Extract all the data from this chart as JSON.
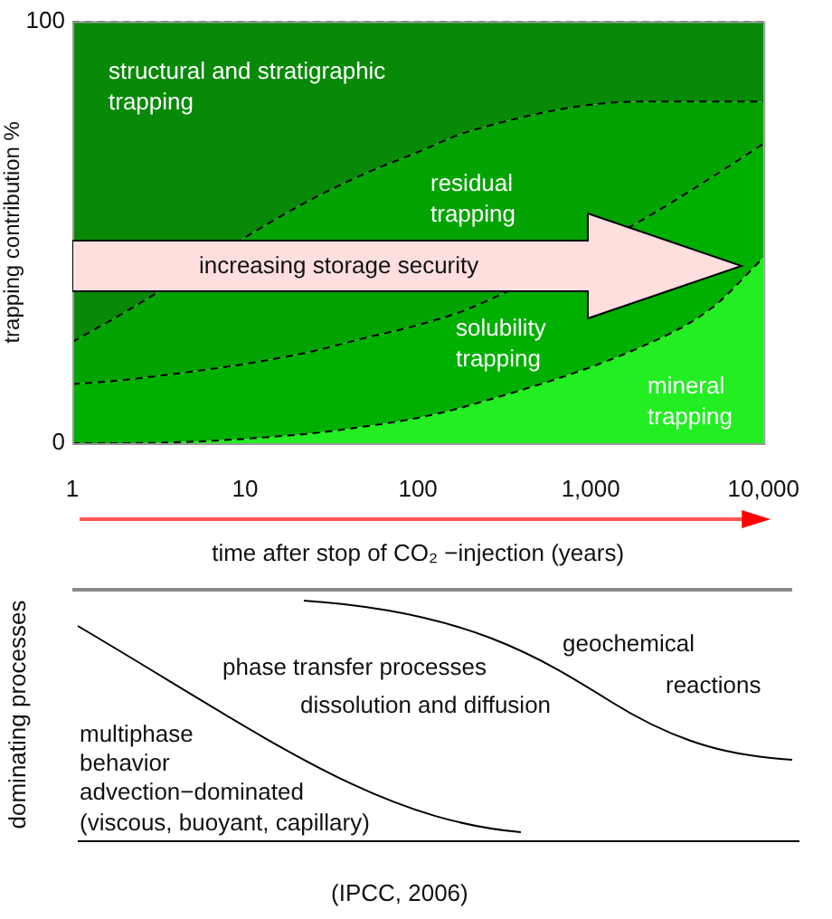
{
  "chart_data": {
    "type": "area",
    "stacked": true,
    "ylabel": "trapping contribution %",
    "xlabel": "time after stop of CO₂ −injection (years)",
    "x": [
      1,
      2,
      20,
      50,
      100,
      200,
      2000,
      5000,
      10000
    ],
    "log": "x",
    "xlim": [
      1,
      10000
    ],
    "xticks": [
      1,
      10,
      100,
      {
        "value": 1000,
        "label": "1,000"
      },
      {
        "value": 10000,
        "label": "10,000"
      }
    ],
    "ylim": [
      0,
      100
    ],
    "yticks": [
      0,
      100
    ],
    "grid": false,
    "legend": false,
    "line_style": "dashed",
    "series": [
      {
        "name": "mineral trapping",
        "color": "#22ee22",
        "values": [
          0,
          0,
          2,
          4,
          6,
          9,
          23,
          32,
          44
        ]
      },
      {
        "name": "solubility trapping",
        "color": "#00b000",
        "values": [
          14,
          15,
          19,
          21,
          22,
          23,
          30,
          31,
          27
        ]
      },
      {
        "name": "residual trapping",
        "color": "#03a303",
        "values": [
          10,
          16,
          35,
          39,
          41,
          42,
          28,
          18,
          10
        ]
      },
      {
        "name": "structural and stratigraphic trapping",
        "color": "#088a08",
        "values": [
          76,
          69,
          44,
          36,
          31,
          26,
          19,
          19,
          19
        ]
      }
    ],
    "annotations": [
      "increasing storage security",
      "dominating processes",
      "multiphase",
      "behavior",
      "advection−dominated",
      "(viscous, buoyant, capillary)",
      "phase transfer processes",
      "dissolution and diffusion",
      "geochemical",
      "reactions",
      "(IPCC, 2006)"
    ]
  }
}
